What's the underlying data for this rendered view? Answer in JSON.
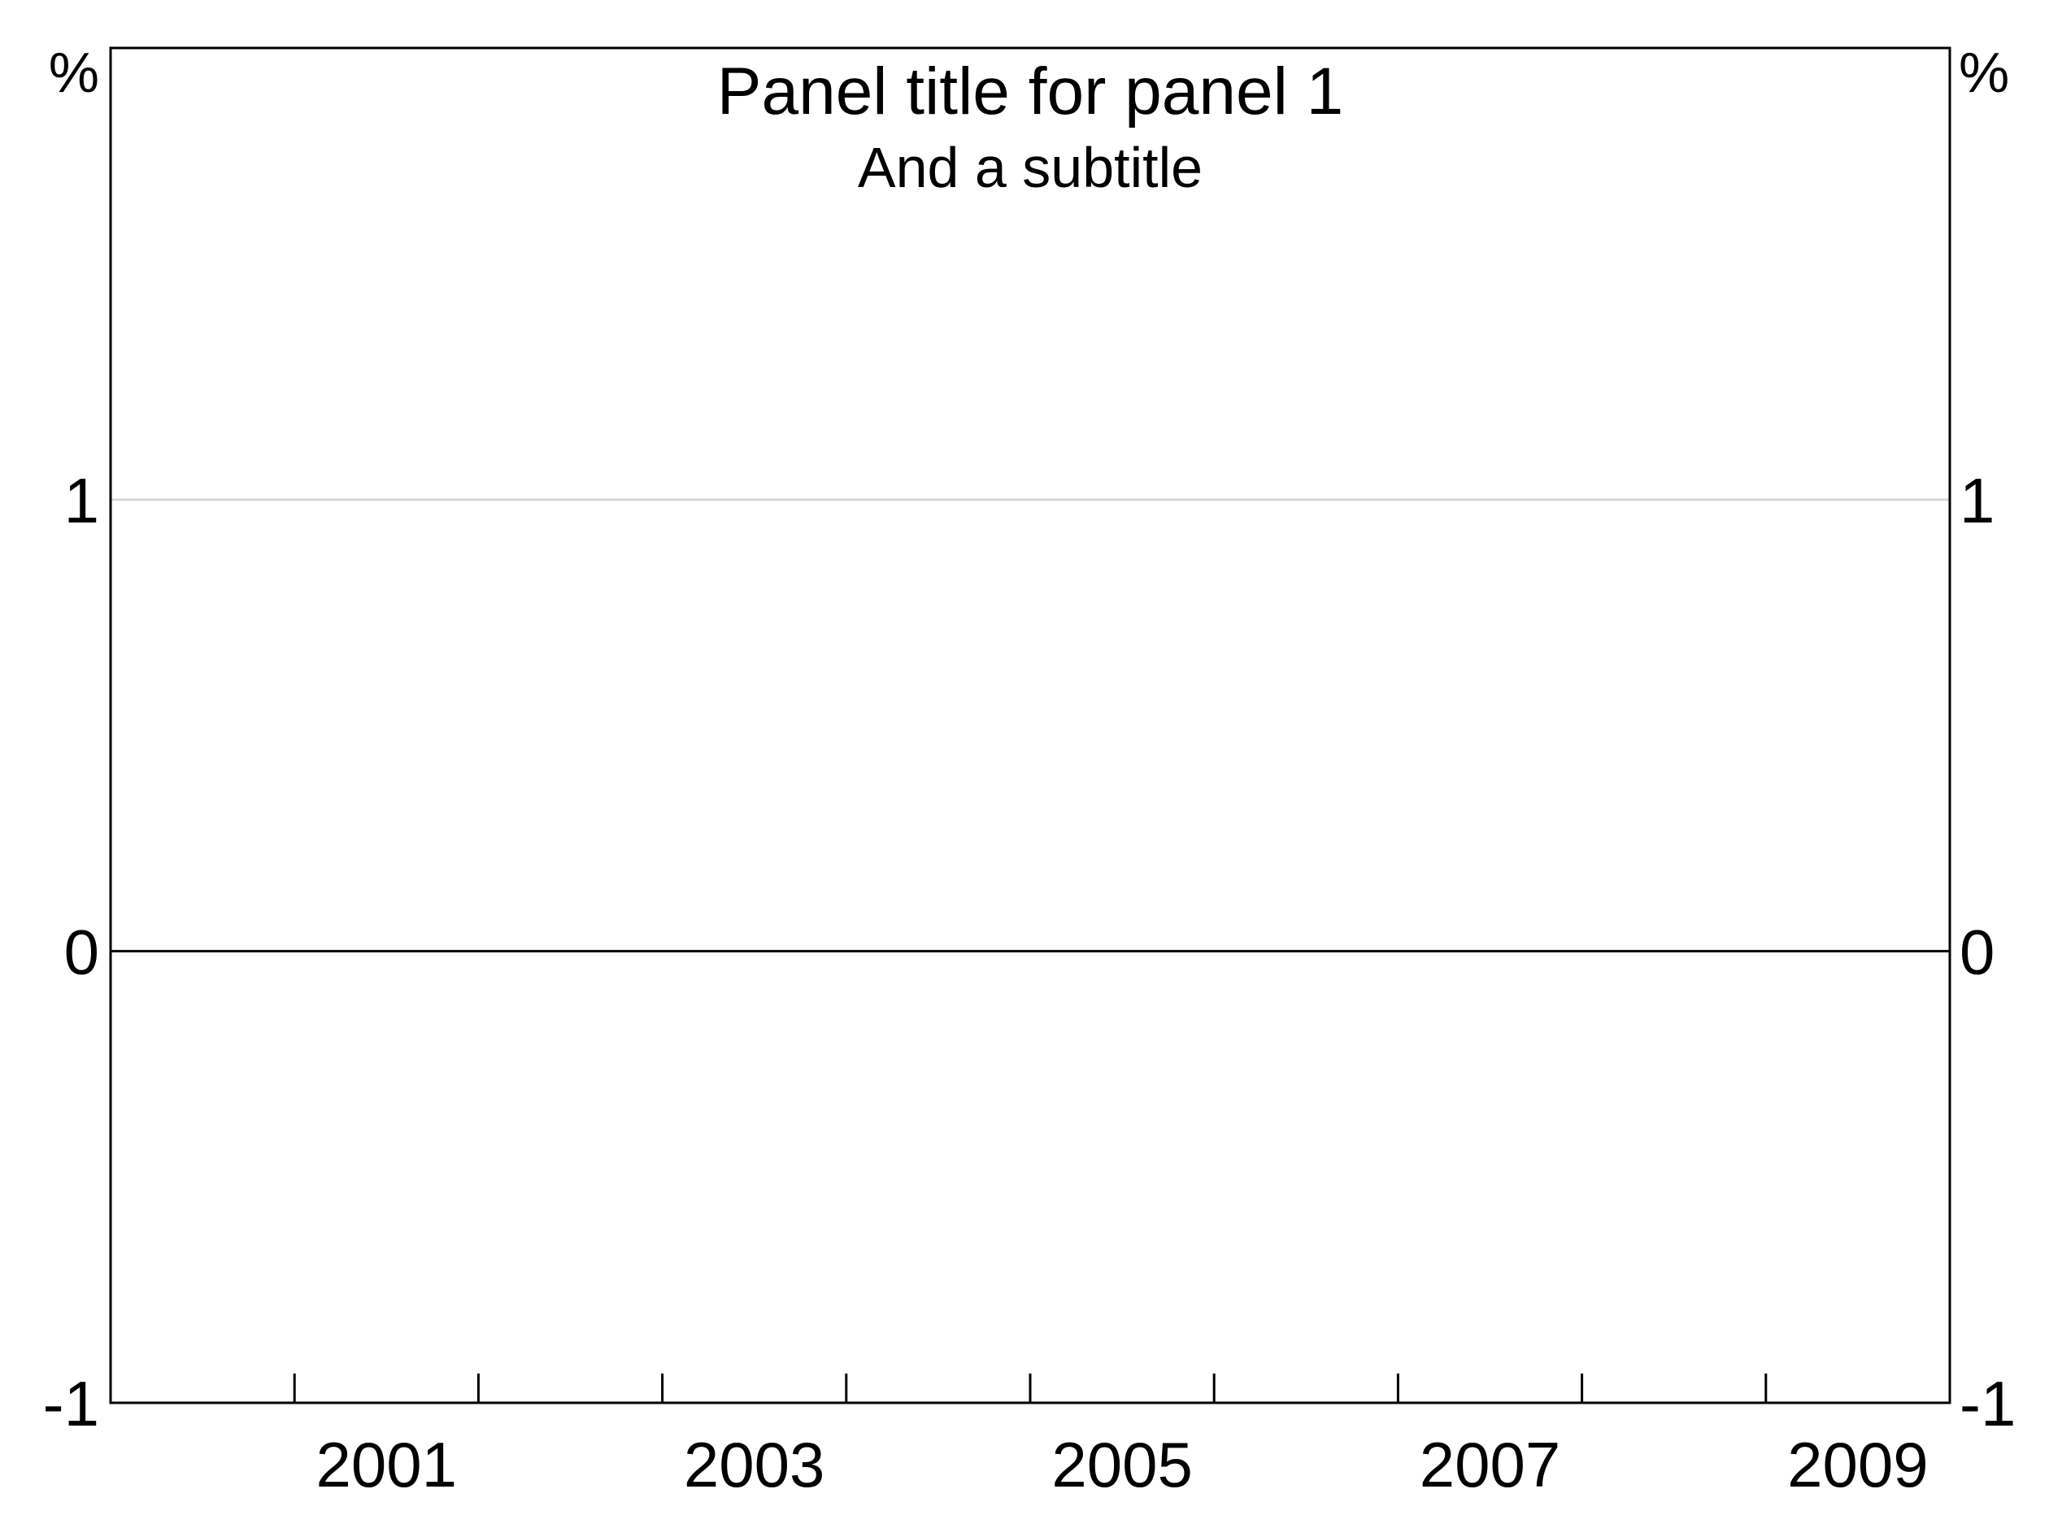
{
  "chart_data": {
    "type": "line",
    "title": "Panel title for panel 1",
    "subtitle": "And a subtitle",
    "y_unit_left": "%",
    "y_unit_right": "%",
    "xlim": [
      2000,
      2010
    ],
    "ylim": [
      -1,
      2
    ],
    "x_minor_ticks": [
      2001,
      2002,
      2003,
      2004,
      2005,
      2006,
      2007,
      2008,
      2009
    ],
    "x_tick_labels": [
      {
        "value": 2001.5,
        "label": "2001"
      },
      {
        "value": 2003.5,
        "label": "2003"
      },
      {
        "value": 2005.5,
        "label": "2005"
      },
      {
        "value": 2007.5,
        "label": "2007"
      },
      {
        "value": 2009.5,
        "label": "2009"
      }
    ],
    "y_tick_labels": [
      {
        "value": 1,
        "label": "1"
      },
      {
        "value": 0,
        "label": "0"
      },
      {
        "value": -1,
        "label": "-1"
      }
    ],
    "gridlines_y": [
      1
    ],
    "zero_line": 0,
    "series": [],
    "grid": true,
    "colors": {
      "frame": "#000000",
      "grid": "#d9d9d9",
      "zero_line": "#000000",
      "text": "#000000"
    }
  }
}
